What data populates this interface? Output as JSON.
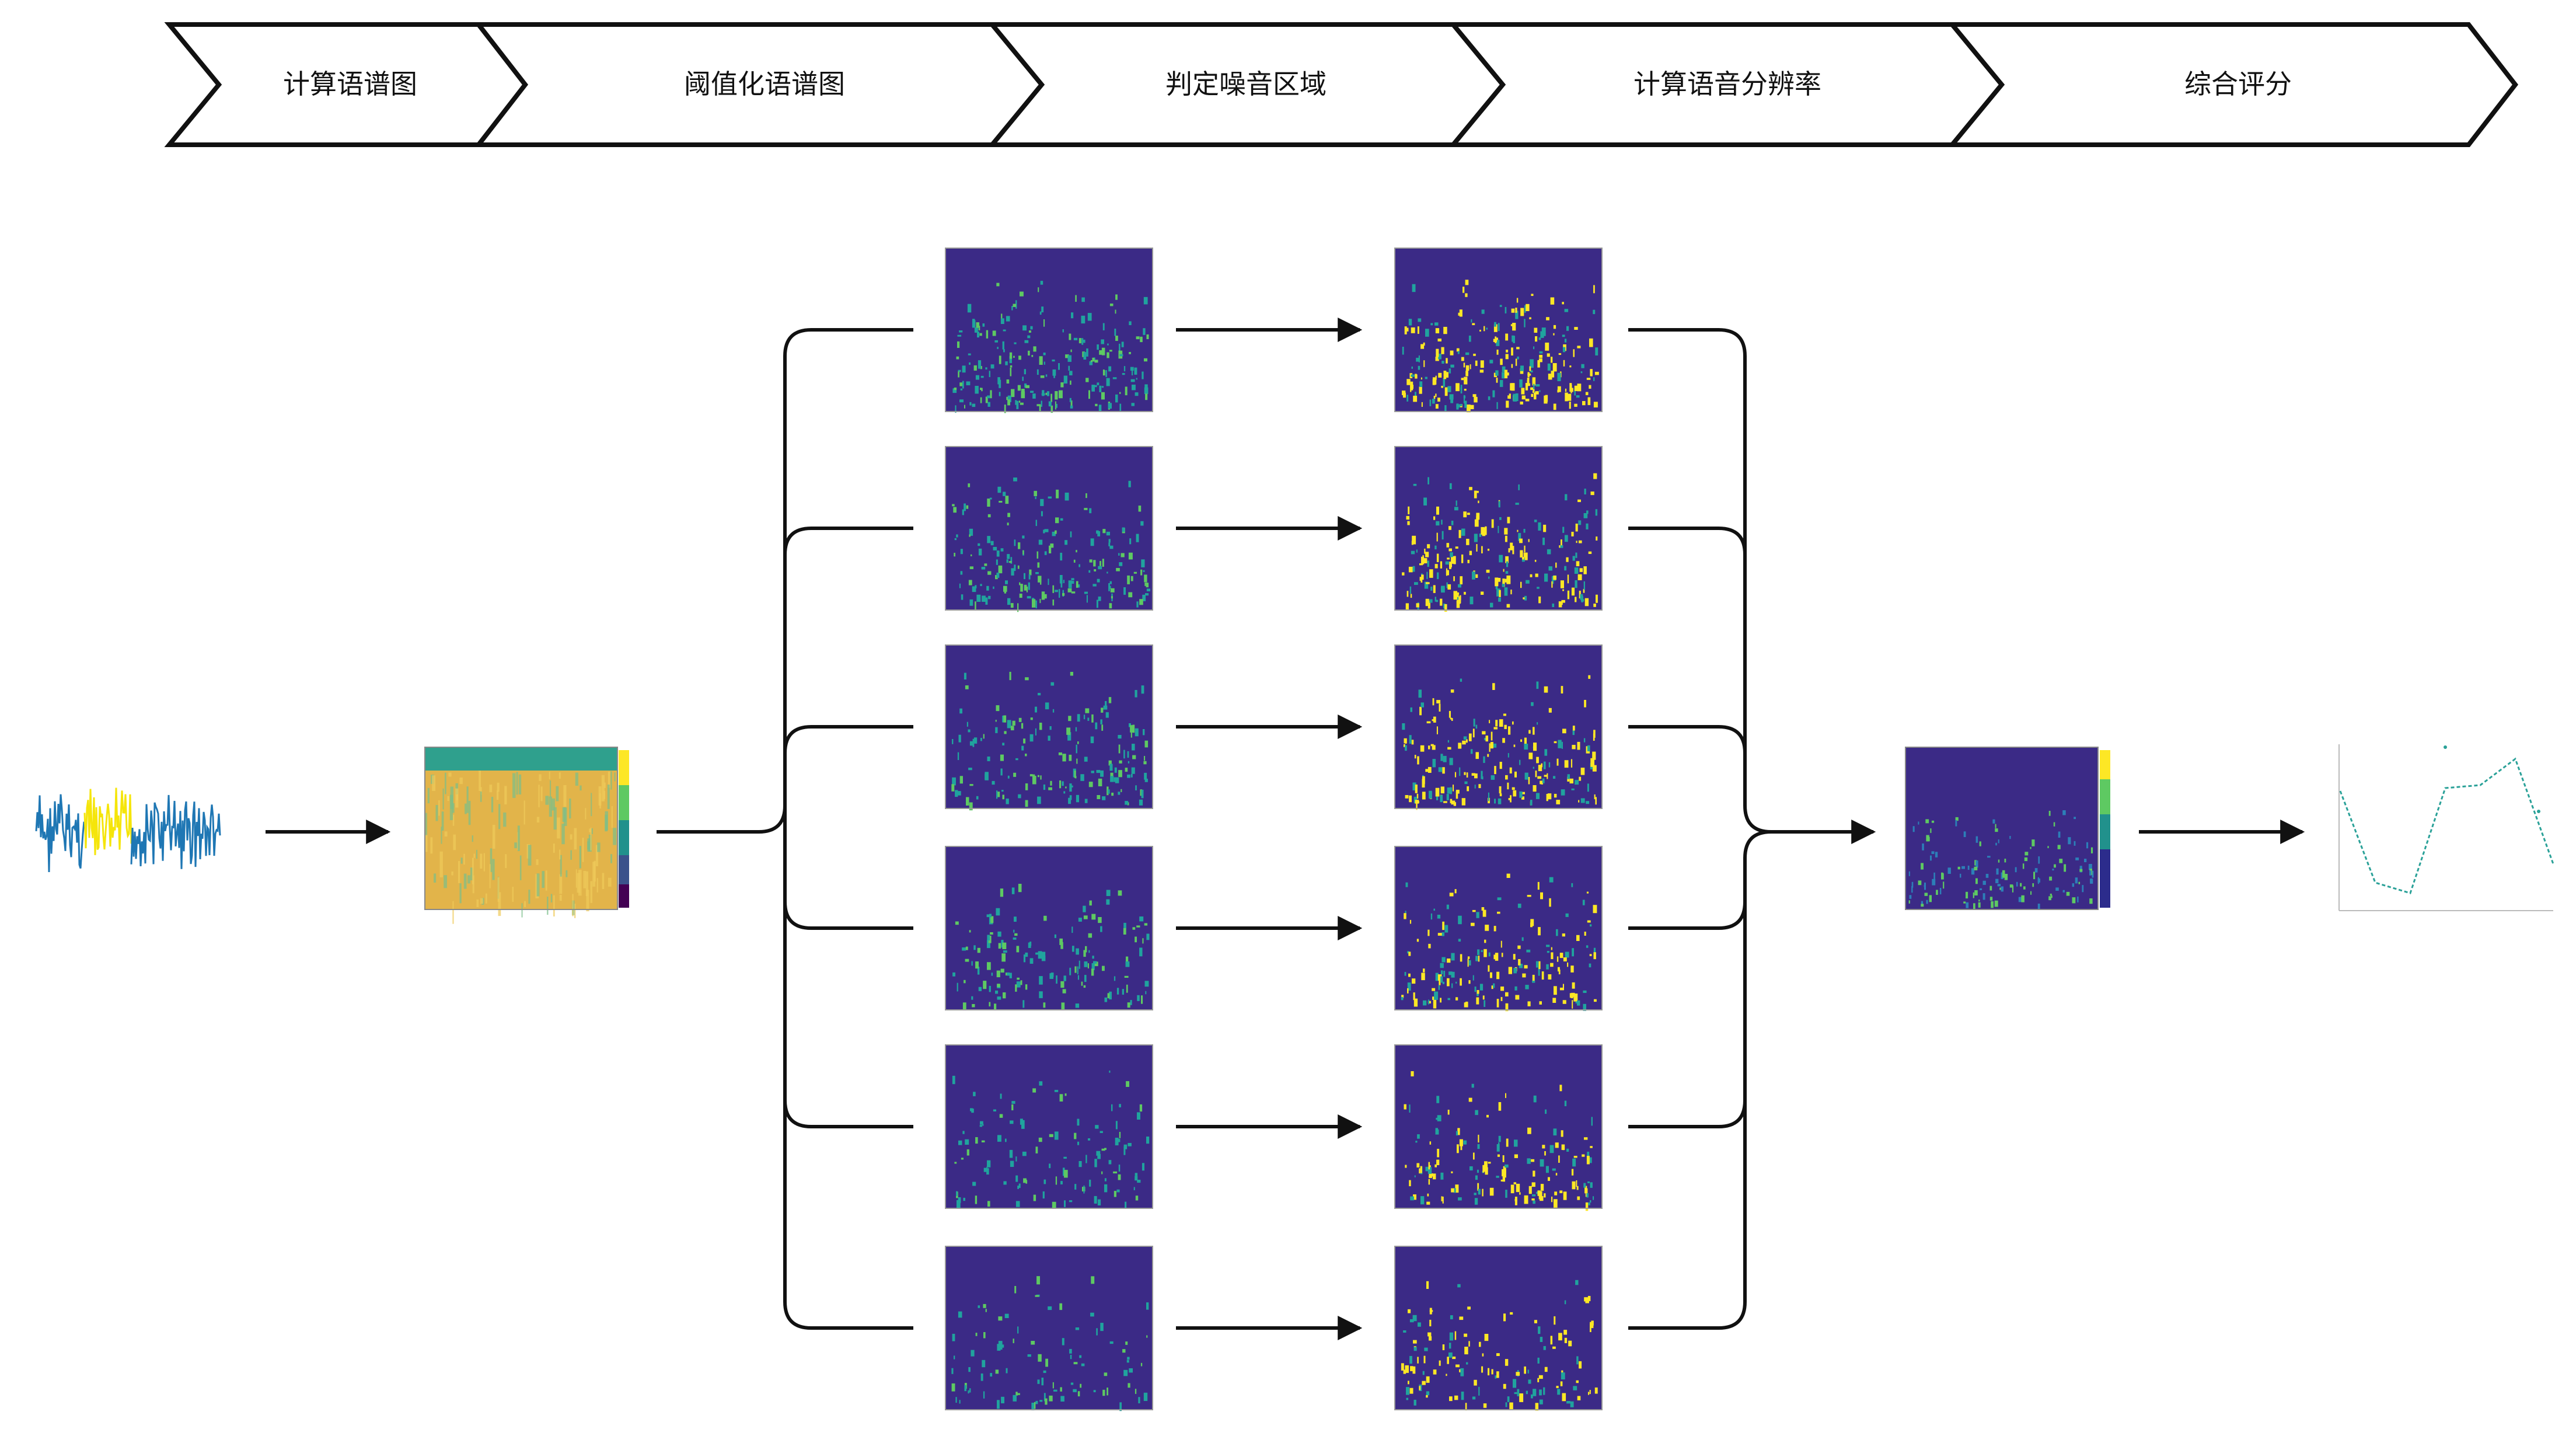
{
  "steps": [
    {
      "label": "计算语谱图"
    },
    {
      "label": "阈值化语谱图"
    },
    {
      "label": "判定噪音区域"
    },
    {
      "label": "计算语音分辨率"
    },
    {
      "label": "综合评分"
    }
  ],
  "colors": {
    "background": "#ffffff",
    "stroke": "#111111",
    "viridis_dark": "#3b2a86",
    "viridis_teal": "#20a39e",
    "viridis_green": "#5ec962",
    "viridis_yellow": "#fde725",
    "waveform_blue": "#1f77b4",
    "waveform_yellow": "#f5e50a",
    "spectrogram_base": "#e2b44a",
    "score_line": "#2aa198"
  },
  "icons": {
    "waveform": "audio-waveform-icon",
    "spectrogram": "full-spectrogram-thumbnail",
    "thresholded": "thresholded-spectrogram-thumbnail",
    "noise": "noise-region-thumbnail",
    "resolution": "resolution-spectrogram-thumbnail",
    "score": "score-line-chart-thumbnail"
  },
  "branch_count": 6
}
